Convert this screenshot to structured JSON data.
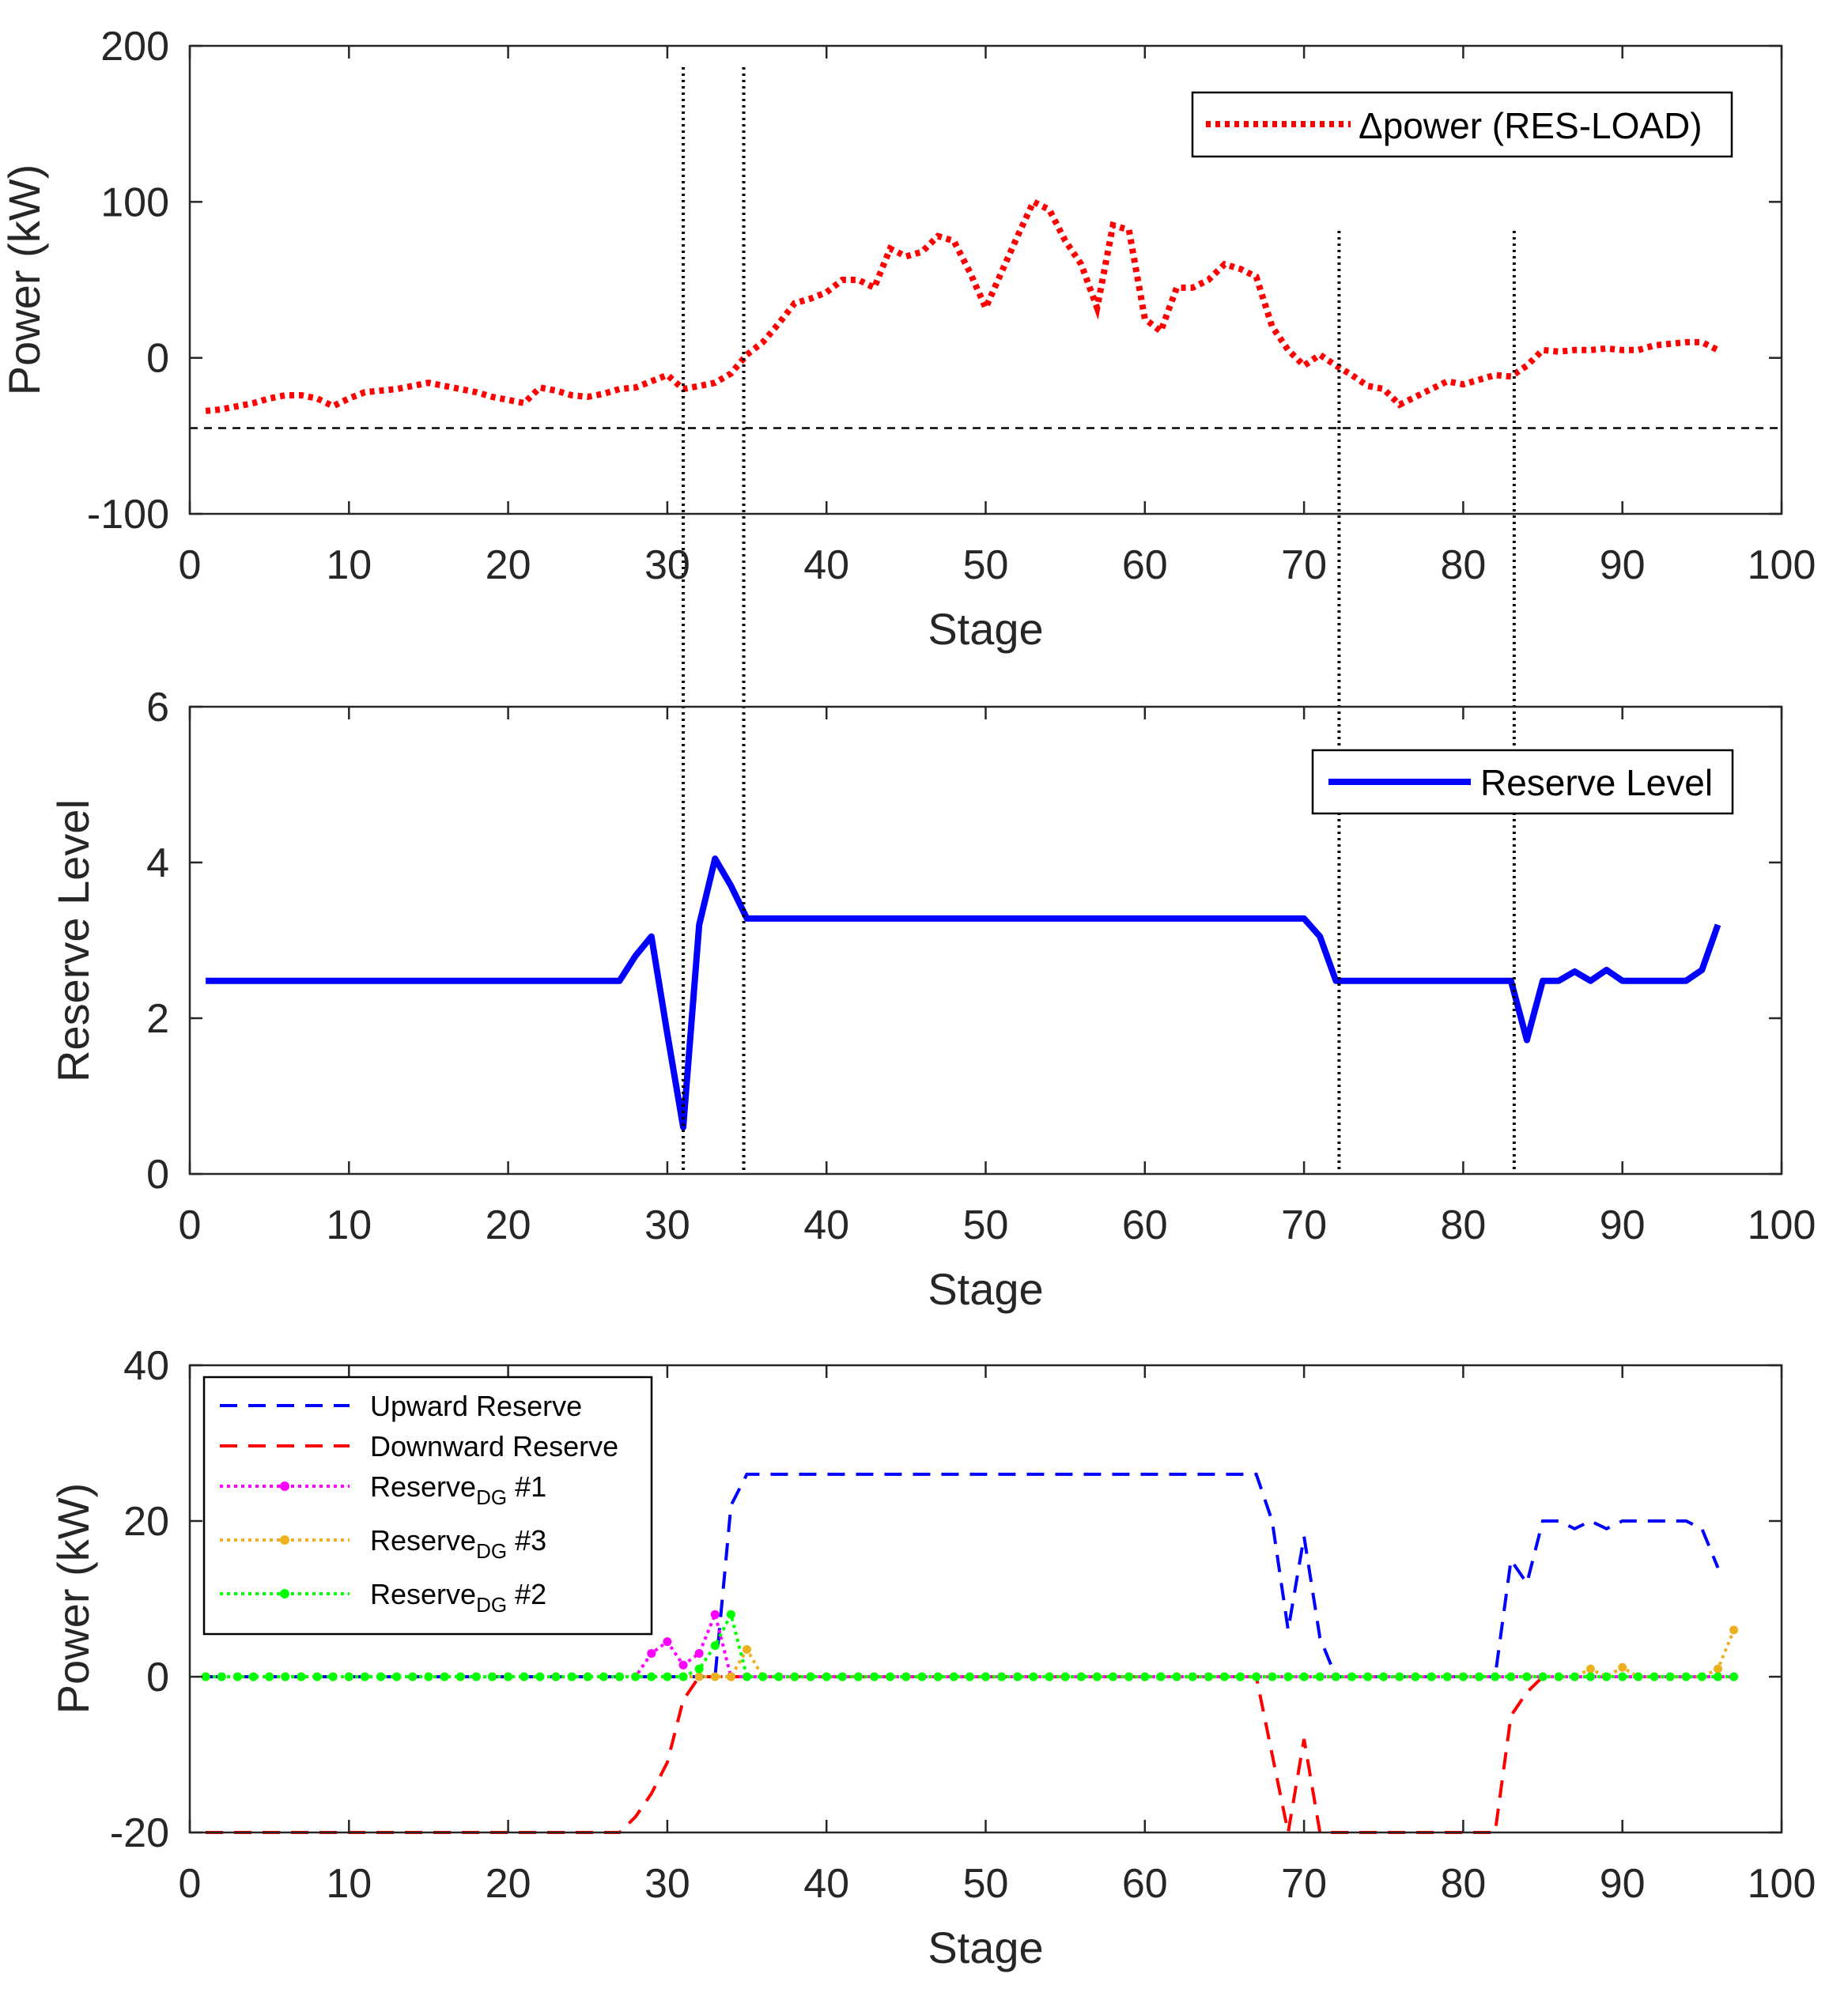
{
  "colors": {
    "delta_power": "#ff0000",
    "reserve_level": "#0000ff",
    "upward": "#0000ff",
    "downward": "#ff0000",
    "dg1": "#ff00ff",
    "dg3": "#edb120",
    "dg2": "#00ff00",
    "axis": "#262626"
  },
  "chart_data": [
    {
      "type": "line",
      "name": "top",
      "xlabel": "Stage",
      "ylabel": "Power (kW)",
      "xlim": [
        0,
        100
      ],
      "ylim": [
        -100,
        200
      ],
      "xticks": [
        0,
        10,
        20,
        30,
        40,
        50,
        60,
        70,
        80,
        90,
        100
      ],
      "yticks": [
        -100,
        0,
        100,
        200
      ],
      "xtick_labels": [
        "0",
        "10",
        "20",
        "30",
        "40",
        "50",
        "60",
        "70",
        "80",
        "90",
        "100"
      ],
      "ytick_labels": [
        "-100",
        "0",
        "100",
        "200"
      ],
      "legend": [
        "Δpower (RES-LOAD)"
      ],
      "legend_position": "top-right",
      "threshold": -45,
      "vlines": [
        31,
        34.8
      ],
      "series": [
        {
          "name": "Δpower (RES-LOAD)",
          "style": "dotted",
          "x": [
            1,
            2,
            3,
            4,
            5,
            6,
            7,
            8,
            9,
            10,
            11,
            12,
            13,
            14,
            15,
            16,
            17,
            18,
            19,
            20,
            21,
            22,
            23,
            24,
            25,
            26,
            27,
            28,
            29,
            30,
            31,
            32,
            33,
            34,
            35,
            36,
            37,
            38,
            39,
            40,
            41,
            42,
            43,
            44,
            45,
            46,
            47,
            48,
            49,
            50,
            51,
            52,
            53,
            54,
            55,
            56,
            57,
            58,
            59,
            60,
            61,
            62,
            63,
            64,
            65,
            66,
            67,
            68,
            69,
            70,
            71,
            72,
            73,
            74,
            75,
            76,
            77,
            78,
            79,
            80,
            81,
            82,
            83,
            84,
            85,
            86,
            87,
            88,
            89,
            90,
            91,
            92,
            93,
            94,
            95,
            96
          ],
          "values": [
            -34,
            -33,
            -31,
            -29,
            -26,
            -24,
            -24,
            -26,
            -31,
            -26,
            -22,
            -21,
            -20,
            -18,
            -16,
            -18,
            -20,
            -22,
            -25,
            -27,
            -29,
            -19,
            -21,
            -24,
            -25,
            -23,
            -20,
            -19,
            -15,
            -11,
            -20,
            -18,
            -16,
            -10,
            2,
            10,
            22,
            35,
            38,
            42,
            50,
            50,
            45,
            70,
            65,
            68,
            78,
            75,
            55,
            32,
            55,
            78,
            100,
            95,
            75,
            60,
            32,
            85,
            82,
            25,
            17,
            45,
            45,
            50,
            60,
            57,
            52,
            20,
            5,
            -5,
            2,
            -5,
            -11,
            -18,
            -20,
            -30,
            -25,
            -20,
            -15,
            -17,
            -14,
            -11,
            -12,
            -5,
            5,
            4,
            5,
            5,
            6,
            5,
            5,
            8,
            9,
            10,
            10,
            5
          ]
        }
      ]
    },
    {
      "type": "line",
      "name": "middle",
      "xlabel": "Stage",
      "ylabel": "Reserve Level",
      "xlim": [
        0,
        100
      ],
      "ylim": [
        0,
        6
      ],
      "xticks": [
        0,
        10,
        20,
        30,
        40,
        50,
        60,
        70,
        80,
        90,
        100
      ],
      "yticks": [
        0,
        2,
        4,
        6
      ],
      "xtick_labels": [
        "0",
        "10",
        "20",
        "30",
        "40",
        "50",
        "60",
        "70",
        "80",
        "90",
        "100"
      ],
      "ytick_labels": [
        "0",
        "2",
        "4",
        "6"
      ],
      "legend": [
        "Reserve Level"
      ],
      "legend_position": "top-right",
      "vlines": [
        72.2,
        83.2
      ],
      "series": [
        {
          "name": "Reserve Level",
          "style": "solid",
          "x": [
            1,
            27,
            28,
            29,
            30,
            31,
            32,
            33,
            34,
            35,
            70,
            71,
            72,
            83,
            84,
            85,
            86,
            87,
            88,
            89,
            90,
            94,
            95,
            96
          ],
          "values": [
            2.48,
            2.48,
            2.8,
            3.05,
            1.8,
            0.6,
            3.2,
            4.05,
            3.7,
            3.28,
            3.28,
            3.05,
            2.48,
            2.48,
            1.72,
            2.48,
            2.48,
            2.6,
            2.48,
            2.62,
            2.48,
            2.48,
            2.62,
            3.2
          ]
        }
      ]
    },
    {
      "type": "line",
      "name": "bottom",
      "xlabel": "Stage",
      "ylabel": "Power (kW)",
      "xlim": [
        0,
        100
      ],
      "ylim": [
        -20,
        40
      ],
      "xticks": [
        0,
        10,
        20,
        30,
        40,
        50,
        60,
        70,
        80,
        90,
        100
      ],
      "yticks": [
        -20,
        0,
        20,
        40
      ],
      "xtick_labels": [
        "0",
        "10",
        "20",
        "30",
        "40",
        "50",
        "60",
        "70",
        "80",
        "90",
        "100"
      ],
      "ytick_labels": [
        "-20",
        "0",
        "20",
        "40"
      ],
      "legend_position": "top-left",
      "legend": [
        {
          "label": "Upward Reserve",
          "sub": "",
          "suffix": ""
        },
        {
          "label": "Downward Reserve",
          "sub": "",
          "suffix": ""
        },
        {
          "label": "Reserve",
          "sub": "DG",
          "suffix": " #1"
        },
        {
          "label": "Reserve",
          "sub": "DG",
          "suffix": " #3"
        },
        {
          "label": "Reserve",
          "sub": "DG",
          "suffix": " #2"
        }
      ],
      "series": [
        {
          "name": "Upward Reserve",
          "style": "dashed",
          "x": [
            1,
            32,
            33,
            34,
            35,
            67,
            68,
            69,
            70,
            71,
            72,
            73,
            82,
            83,
            84,
            85,
            86,
            87,
            88,
            89,
            90,
            94,
            95,
            96
          ],
          "values": [
            0,
            0,
            0,
            22,
            26,
            26,
            20,
            6,
            18,
            5,
            0,
            0,
            0,
            15,
            12,
            20,
            20,
            19,
            20,
            19,
            20,
            20,
            19,
            14
          ]
        },
        {
          "name": "Downward Reserve",
          "style": "dashed",
          "x": [
            1,
            27,
            28,
            29,
            30,
            31,
            32,
            33,
            34,
            67,
            68,
            69,
            70,
            71,
            72,
            73,
            82,
            83,
            84,
            85
          ],
          "values": [
            -20,
            -20,
            -18,
            -15,
            -11,
            -3,
            0,
            0,
            0,
            0,
            -10,
            -20,
            -8,
            -20,
            -20,
            -20,
            -20,
            -5,
            -2,
            0
          ]
        },
        {
          "name": "Reserve DG #1",
          "style": "dotted-marker",
          "x": [
            1,
            28,
            29,
            30,
            31,
            32,
            33,
            34,
            35,
            97
          ],
          "values": [
            0,
            0,
            3,
            4.5,
            1.5,
            3,
            8,
            0,
            0,
            0
          ]
        },
        {
          "name": "Reserve DG #3",
          "style": "dotted-marker",
          "x": [
            1,
            34,
            35,
            36,
            87,
            88,
            89,
            90,
            91,
            95,
            96,
            97
          ],
          "values": [
            0,
            0,
            3.5,
            0,
            0,
            1,
            0,
            1.2,
            0,
            0,
            1,
            6
          ]
        },
        {
          "name": "Reserve DG #2",
          "style": "dotted-marker",
          "x": [
            1,
            31,
            32,
            33,
            34,
            35,
            97
          ],
          "values": [
            0,
            0,
            1,
            4,
            8,
            0,
            0
          ]
        }
      ]
    }
  ]
}
